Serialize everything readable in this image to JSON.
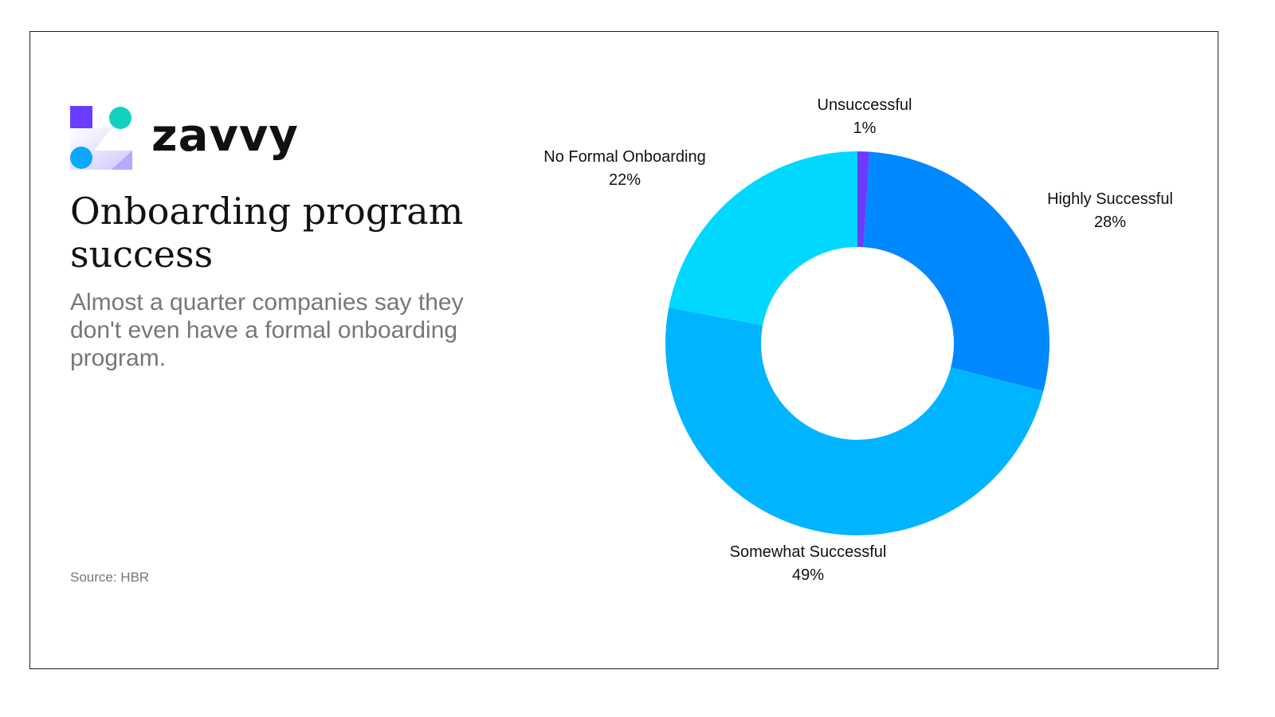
{
  "brand": {
    "name": "zavvy",
    "logo_colors": [
      "#6a3cff",
      "#14cfc0",
      "#0aa8ff",
      "#b7a8ff"
    ]
  },
  "title": "Onboarding program success",
  "subtitle": "Almost a quarter companies say they don't even have a formal onboarding program.",
  "source": "Source: HBR",
  "chart_data": {
    "type": "pie",
    "variant": "donut",
    "title": "",
    "slices": [
      {
        "label": "Unsuccessful",
        "value": 1,
        "display": "1%",
        "color": "#6a3cff"
      },
      {
        "label": "Highly Successful",
        "value": 28,
        "display": "28%",
        "color": "#0088ff"
      },
      {
        "label": "Somewhat Successful",
        "value": 49,
        "display": "49%",
        "color": "#00b4ff"
      },
      {
        "label": "No Formal Onboarding",
        "value": 22,
        "display": "22%",
        "color": "#00d8ff"
      }
    ],
    "legend": "none",
    "labels": "outside"
  }
}
